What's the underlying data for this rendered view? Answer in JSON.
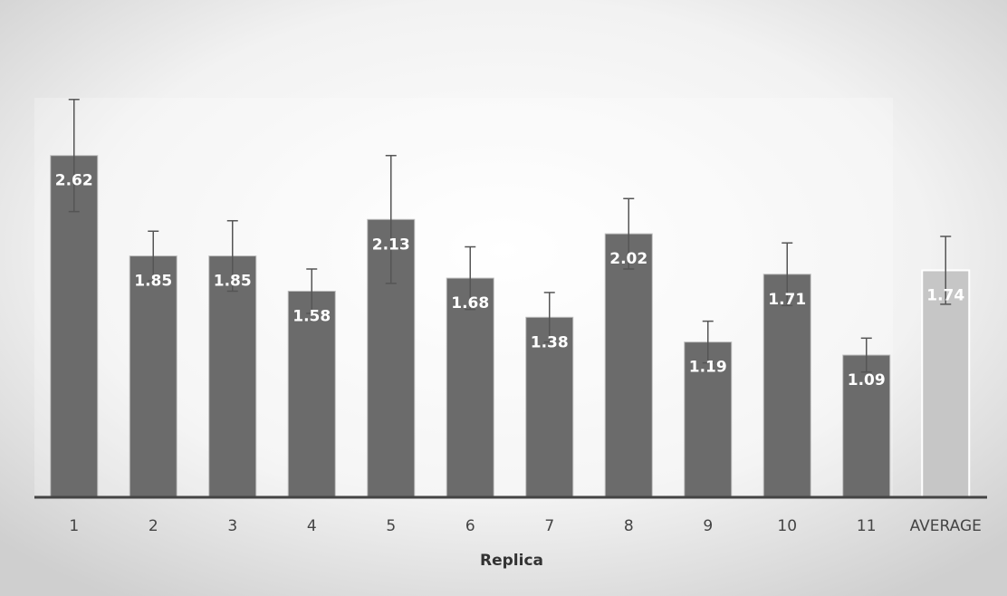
{
  "chart_data": {
    "type": "bar",
    "x_label": "Replica",
    "categories": [
      "1",
      "2",
      "3",
      "4",
      "5",
      "6",
      "7",
      "8",
      "9",
      "10",
      "11",
      "AVERAGE"
    ],
    "values": [
      2.62,
      1.85,
      1.85,
      1.58,
      2.13,
      1.68,
      1.38,
      2.02,
      1.19,
      1.71,
      1.09,
      1.74
    ],
    "errors": [
      0.43,
      0.19,
      0.27,
      0.17,
      0.49,
      0.24,
      0.19,
      0.27,
      0.16,
      0.24,
      0.13,
      0.26
    ],
    "colors": [
      "#6b6b6b",
      "#6b6b6b",
      "#6b6b6b",
      "#6b6b6b",
      "#6b6b6b",
      "#6b6b6b",
      "#6b6b6b",
      "#6b6b6b",
      "#6b6b6b",
      "#6b6b6b",
      "#6b6b6b",
      "#c6c6c6"
    ],
    "ylim": [
      0,
      3
    ]
  }
}
